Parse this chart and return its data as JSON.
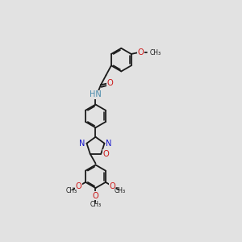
{
  "background_color": "#e2e2e2",
  "bond_color": "#1a1a1a",
  "N_color": "#1515cc",
  "O_color": "#cc1515",
  "H_color": "#4488aa",
  "fig_size": [
    3.0,
    3.0
  ],
  "dpi": 100,
  "xlim": [
    0,
    10
  ],
  "ylim": [
    0,
    10
  ]
}
